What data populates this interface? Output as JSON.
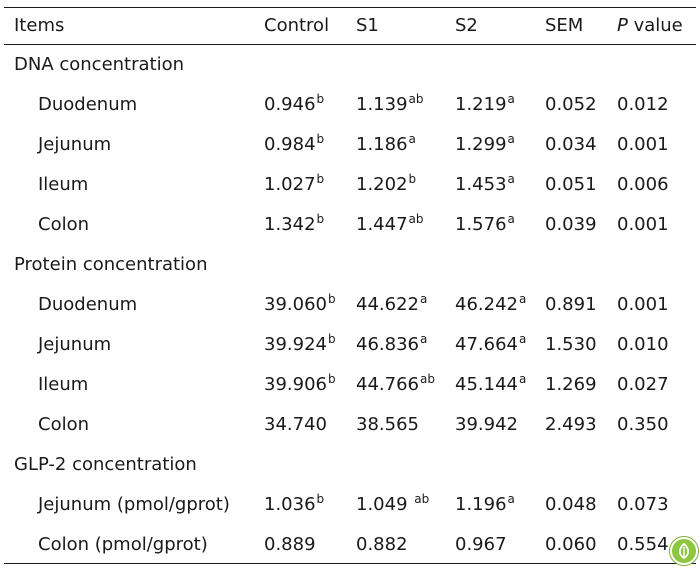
{
  "header": {
    "items": "Items",
    "control": "Control",
    "s1": "S1",
    "s2": "S2",
    "sem": "SEM",
    "p_italic": "P",
    "p_rest": " value"
  },
  "sections": [
    {
      "title": "DNA concentration",
      "rows": [
        {
          "item": "Duodenum",
          "control": {
            "v": "0.946",
            "s": "b"
          },
          "s1": {
            "v": "1.139",
            "s": "ab"
          },
          "s2": {
            "v": "1.219",
            "s": "a"
          },
          "sem": "0.052",
          "p": "0.012"
        },
        {
          "item": "Jejunum",
          "control": {
            "v": "0.984",
            "s": "b"
          },
          "s1": {
            "v": "1.186",
            "s": "a"
          },
          "s2": {
            "v": "1.299",
            "s": "a"
          },
          "sem": "0.034",
          "p": "0.001"
        },
        {
          "item": "Ileum",
          "control": {
            "v": "1.027",
            "s": "b"
          },
          "s1": {
            "v": "1.202",
            "s": "b"
          },
          "s2": {
            "v": "1.453",
            "s": "a"
          },
          "sem": "0.051",
          "p": "0.006"
        },
        {
          "item": "Colon",
          "control": {
            "v": "1.342",
            "s": "b"
          },
          "s1": {
            "v": "1.447",
            "s": "ab"
          },
          "s2": {
            "v": "1.576",
            "s": "a"
          },
          "sem": "0.039",
          "p": "0.001"
        }
      ]
    },
    {
      "title": "Protein concentration",
      "rows": [
        {
          "item": "Duodenum",
          "control": {
            "v": "39.060",
            "s": "b"
          },
          "s1": {
            "v": "44.622",
            "s": "a"
          },
          "s2": {
            "v": "46.242",
            "s": "a"
          },
          "sem": "0.891",
          "p": "0.001"
        },
        {
          "item": "Jejunum",
          "control": {
            "v": "39.924",
            "s": "b"
          },
          "s1": {
            "v": "46.836",
            "s": "a"
          },
          "s2": {
            "v": "47.664",
            "s": "a"
          },
          "sem": "1.530",
          "p": "0.010"
        },
        {
          "item": "Ileum",
          "control": {
            "v": "39.906",
            "s": "b"
          },
          "s1": {
            "v": "44.766",
            "s": "ab"
          },
          "s2": {
            "v": "45.144",
            "s": "a"
          },
          "sem": "1.269",
          "p": "0.027"
        },
        {
          "item": "Colon",
          "control": {
            "v": "34.740",
            "s": ""
          },
          "s1": {
            "v": "38.565",
            "s": ""
          },
          "s2": {
            "v": "39.942",
            "s": ""
          },
          "sem": "2.493",
          "p": "0.350"
        }
      ]
    },
    {
      "title": "GLP-2 concentration",
      "rows": [
        {
          "item": "Jejunum (pmol/gprot)",
          "control": {
            "v": "1.036",
            "s": "b"
          },
          "s1": {
            "v": "1.049 ",
            "s": "ab"
          },
          "s2": {
            "v": "1.196",
            "s": "a"
          },
          "sem": "0.048",
          "p": "0.073"
        },
        {
          "item": "Colon (pmol/gprot)",
          "control": {
            "v": "0.889",
            "s": ""
          },
          "s1": {
            "v": "0.882",
            "s": ""
          },
          "s2": {
            "v": "0.967",
            "s": ""
          },
          "sem": "0.060",
          "p": "0.554"
        }
      ]
    }
  ],
  "colors": {
    "text": "#1a1a1a",
    "rule": "#1a1a1a",
    "logo_green": "#8dc63f"
  },
  "icons": {
    "publisher_logo": "green-circle-leaf-icon"
  }
}
